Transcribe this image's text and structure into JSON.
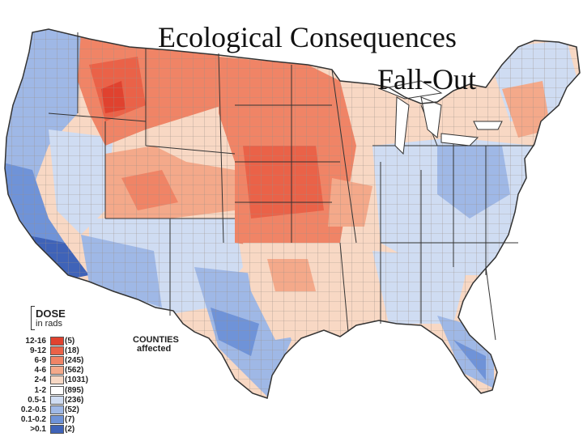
{
  "title_line1": "Ecological Consequences",
  "title_line2": "Fall-Out",
  "legend": {
    "heading": "DOSE",
    "subheading": "in rads",
    "counties_heading": "COUNTIES",
    "counties_sub": "affected",
    "rows": [
      {
        "range": "12-16",
        "count": "(5)",
        "color": "#e0422f"
      },
      {
        "range": "9-12",
        "count": "(18)",
        "color": "#ea6248"
      },
      {
        "range": "6-9",
        "count": "(245)",
        "color": "#f08466"
      },
      {
        "range": "4-6",
        "count": "(562)",
        "color": "#f4a98a"
      },
      {
        "range": "2-4",
        "count": "(1031)",
        "color": "#f8d8c4"
      },
      {
        "range": "1-2",
        "count": "(895)",
        "color": "#ffffff"
      },
      {
        "range": "0.5-1",
        "count": "(236)",
        "color": "#cfdcf2"
      },
      {
        "range": "0.2-0.5",
        "count": "(52)",
        "color": "#9fb8e6"
      },
      {
        "range": "0.1-0.2",
        "count": "(7)",
        "color": "#6f93d8"
      },
      {
        "range": ">0.1",
        "count": "(2)",
        "color": "#3f63b8"
      }
    ]
  }
}
